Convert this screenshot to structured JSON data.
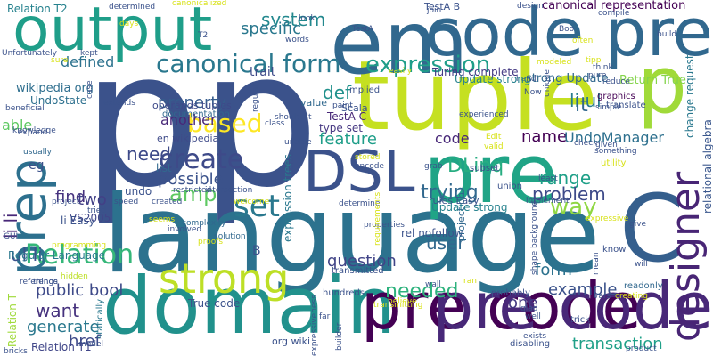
{
  "words": [
    {
      "text": "p",
      "color": "#3b528b"
    },
    {
      "text": "p",
      "color": "#3b528b"
    },
    {
      "text": "language",
      "color": "#2c728e"
    },
    {
      "text": "tuple",
      "color": "#c5e021"
    },
    {
      "text": "output",
      "color": "#1f9e89"
    },
    {
      "text": "em",
      "color": "#31688e"
    },
    {
      "text": "code pre",
      "color": "#31688e"
    },
    {
      "text": "domain",
      "color": "#21918c"
    },
    {
      "text": "pre code",
      "color": "#440154"
    },
    {
      "text": "pre code",
      "color": "#482878"
    },
    {
      "text": "DSL",
      "color": "#3b528b"
    },
    {
      "text": "pre",
      "color": "#20a486"
    },
    {
      "text": "p",
      "color": "#a0da39"
    },
    {
      "text": "C",
      "color": "#355f8d"
    },
    {
      "text": "prep",
      "color": "#2d708e"
    },
    {
      "text": "strong",
      "color": "#bddf26"
    },
    {
      "text": "canonical form",
      "color": "#2a788e"
    },
    {
      "text": "designer",
      "color": "#482575"
    },
    {
      "text": "expression",
      "color": "#1f9e89"
    },
    {
      "text": "Relation",
      "color": "#35b779"
    },
    {
      "text": "create",
      "color": "#3e4a89"
    },
    {
      "text": "based",
      "color": "#fde725"
    },
    {
      "text": "set",
      "color": "#2a788e"
    },
    {
      "text": "feature",
      "color": "#1f9e89"
    },
    {
      "text": "code",
      "color": "#482878"
    },
    {
      "text": "def",
      "color": "#21918c"
    },
    {
      "text": "property",
      "color": "#365c8d"
    },
    {
      "text": "another",
      "color": "#482878"
    },
    {
      "text": "need",
      "color": "#3e4a89"
    },
    {
      "text": "possible",
      "color": "#3b528b"
    },
    {
      "text": "li li",
      "color": "#482878"
    },
    {
      "text": "li ul",
      "color": "#287c8e"
    },
    {
      "text": "lt",
      "color": "#31688e"
    },
    {
      "text": "name",
      "color": "#440154"
    },
    {
      "text": "UndoManager",
      "color": "#2d708e"
    },
    {
      "text": "way",
      "color": "#90d743"
    },
    {
      "text": "DLinq",
      "color": "#27ad81"
    },
    {
      "text": "range",
      "color": "#1fa088"
    },
    {
      "text": "trying",
      "color": "#31688e"
    },
    {
      "text": "problem",
      "color": "#3e4a89"
    },
    {
      "text": "question",
      "color": "#414487"
    },
    {
      "text": "user",
      "color": "#31688e"
    },
    {
      "text": "needed",
      "color": "#2db27d"
    },
    {
      "text": "example",
      "color": "#3b528b"
    },
    {
      "text": "form",
      "color": "#2c728e"
    },
    {
      "text": "one",
      "color": "#443a83"
    },
    {
      "text": "transaction",
      "color": "#1fa088"
    },
    {
      "text": "generate",
      "color": "#2a788e"
    },
    {
      "text": "public bool",
      "color": "#3e4a89"
    },
    {
      "text": "want",
      "color": "#46327e"
    },
    {
      "text": "href",
      "color": "#3e4a89"
    },
    {
      "text": "find",
      "color": "#46327e"
    },
    {
      "text": "two",
      "color": "#424086"
    },
    {
      "text": "ul li",
      "color": "#3b528b"
    },
    {
      "text": "amp",
      "color": "#5ec962"
    },
    {
      "text": "system",
      "color": "#23888e"
    },
    {
      "text": "specific",
      "color": "#2a788e"
    },
    {
      "text": "trait",
      "color": "#3e4a89"
    },
    {
      "text": "defined",
      "color": "#2c728e"
    },
    {
      "text": "able",
      "color": "#5ec962"
    },
    {
      "text": "canonical representation",
      "color": "#440154"
    },
    {
      "text": "strong Update",
      "color": "#31688e"
    },
    {
      "text": "Return True",
      "color": "#84d44b"
    },
    {
      "text": "Turing complete",
      "color": "#443983"
    },
    {
      "text": "change request",
      "color": "#2a788e"
    },
    {
      "text": "relational algebra",
      "color": "#39568c"
    },
    {
      "text": "Relation T2",
      "color": "#26828e"
    },
    {
      "text": "Relation T1",
      "color": "#404688"
    },
    {
      "text": "Relation T",
      "color": "#9fda3a"
    },
    {
      "text": "wikipedia org",
      "color": "#2e6e8e"
    },
    {
      "text": "UndoState",
      "color": "#2d708e"
    },
    {
      "text": "Regular Language",
      "color": "#2a788e"
    },
    {
      "text": "VS2005",
      "color": "#404688"
    },
    {
      "text": "li Easy",
      "color": "#3b528b"
    },
    {
      "text": "eg",
      "color": "#3b528b"
    },
    {
      "text": "en wikipedia",
      "color": "#3e4a89"
    },
    {
      "text": "TestA C",
      "color": "#482878"
    },
    {
      "text": "type set",
      "color": "#453781"
    },
    {
      "text": "operands tuples",
      "color": "#3e4a89"
    },
    {
      "text": "documentation",
      "color": "#31688e"
    },
    {
      "text": "expression trees",
      "color": "#2a788e"
    },
    {
      "text": "Update strong",
      "color": "#26828e"
    },
    {
      "text": "rel nofollow",
      "color": "#3b528b"
    },
    {
      "text": "True code",
      "color": "#3b528b"
    },
    {
      "text": "org wiki",
      "color": "#3b528b"
    },
    {
      "text": "B",
      "color": "#3b528b"
    },
    {
      "text": "list",
      "color": "#31688e"
    },
    {
      "text": "undo",
      "color": "#3b528b"
    },
    {
      "text": "Scala",
      "color": "#3b528b"
    },
    {
      "text": "value",
      "color": "#31688e"
    },
    {
      "text": "Implied",
      "color": "#3b528b"
    },
    {
      "text": "TestA B",
      "color": "#3b528b"
    },
    {
      "text": "rules Easy",
      "color": "#3b528b"
    },
    {
      "text": "projection",
      "color": "#31688e"
    },
    {
      "text": "subset",
      "color": "#3b528b"
    },
    {
      "text": "union",
      "color": "#3b528b"
    },
    {
      "text": "graphics",
      "color": "#440154"
    },
    {
      "text": "translate",
      "color": "#3b528b"
    },
    {
      "text": "utility",
      "color": "#d8e219"
    },
    {
      "text": "know",
      "color": "#3b528b"
    },
    {
      "text": "readonly",
      "color": "#31688e"
    },
    {
      "text": "statically",
      "color": "#2a788e"
    },
    {
      "text": "hundreds",
      "color": "#3b528b"
    },
    {
      "text": "transmitted",
      "color": "#3b528b"
    },
    {
      "text": "disabling",
      "color": "#3b528b"
    },
    {
      "text": "trick",
      "color": "#3b528b"
    },
    {
      "text": "probably",
      "color": "#3b528b"
    },
    {
      "text": "model",
      "color": "#3b528b"
    },
    {
      "text": "bricks",
      "color": "#3b528b"
    },
    {
      "text": "things",
      "color": "#3b528b"
    },
    {
      "text": "hidden",
      "color": "#bddf26"
    },
    {
      "text": "programming",
      "color": "#d8e219"
    },
    {
      "text": "reference",
      "color": "#3b528b"
    },
    {
      "text": "proofs",
      "color": "#d8e219"
    },
    {
      "text": "involved",
      "color": "#3b528b"
    },
    {
      "text": "seems",
      "color": "#d8e219"
    },
    {
      "text": "solution",
      "color": "#31688e"
    },
    {
      "text": "complexity",
      "color": "#31688e"
    },
    {
      "text": "restricted",
      "color": "#3b528b"
    },
    {
      "text": "intersection",
      "color": "#3b528b"
    },
    {
      "text": "welcome",
      "color": "#d8e219"
    },
    {
      "text": "speed",
      "color": "#3b528b"
    },
    {
      "text": "created",
      "color": "#3b528b"
    },
    {
      "text": "tried",
      "color": "#3b528b"
    },
    {
      "text": "project",
      "color": "#3b528b"
    },
    {
      "text": "GUI",
      "color": "#3b528b"
    },
    {
      "text": "expand",
      "color": "#3b528b"
    },
    {
      "text": "usually",
      "color": "#31688e"
    },
    {
      "text": "beneficial",
      "color": "#3b528b"
    },
    {
      "text": "knowledge",
      "color": "#3b528b"
    },
    {
      "text": "Unfortunately",
      "color": "#3b528b"
    },
    {
      "text": "sure",
      "color": "#d8e219"
    },
    {
      "text": "kept",
      "color": "#3b528b"
    },
    {
      "text": "determined",
      "color": "#3b528b"
    },
    {
      "text": "canonicalized",
      "color": "#d8e219"
    },
    {
      "text": "days",
      "color": "#d8e219"
    },
    {
      "text": "T2",
      "color": "#3b528b"
    },
    {
      "text": "words",
      "color": "#3b528b"
    },
    {
      "text": "look",
      "color": "#3b528b"
    },
    {
      "text": "TestA",
      "color": "#3b528b"
    },
    {
      "text": "join",
      "color": "#3b528b"
    },
    {
      "text": "design",
      "color": "#3b528b"
    },
    {
      "text": "compile",
      "color": "#3b528b"
    },
    {
      "text": "tipp",
      "color": "#d8e219"
    },
    {
      "text": "modeled",
      "color": "#d8e219"
    },
    {
      "text": "Boo",
      "color": "#3b528b"
    },
    {
      "text": "often",
      "color": "#d8e219"
    },
    {
      "text": "build",
      "color": "#3b528b"
    },
    {
      "text": "pure",
      "color": "#3b528b"
    },
    {
      "text": "think",
      "color": "#3b528b"
    },
    {
      "text": "reduce",
      "color": "#3b528b"
    },
    {
      "text": "hand",
      "color": "#3b528b"
    },
    {
      "text": "easily",
      "color": "#d8e219"
    },
    {
      "text": "Now",
      "color": "#3b528b"
    },
    {
      "text": "unique",
      "color": "#3b528b"
    },
    {
      "text": "simple",
      "color": "#3b528b"
    },
    {
      "text": "case",
      "color": "#3b528b"
    },
    {
      "text": "extends",
      "color": "#3b528b"
    },
    {
      "text": "regular",
      "color": "#3b528b"
    },
    {
      "text": "paint",
      "color": "#3b528b"
    },
    {
      "text": "class",
      "color": "#3b528b"
    },
    {
      "text": "shouldn't",
      "color": "#3b528b"
    },
    {
      "text": "unable",
      "color": "#3b528b"
    },
    {
      "text": "stored",
      "color": "#d8e219"
    },
    {
      "text": "parse",
      "color": "#3b528b"
    },
    {
      "text": "encode",
      "color": "#3b528b"
    },
    {
      "text": "experienced",
      "color": "#3b528b"
    },
    {
      "text": "valid",
      "color": "#d8e219"
    },
    {
      "text": "Edit",
      "color": "#d8e219"
    },
    {
      "text": "check",
      "color": "#3b528b"
    },
    {
      "text": "given",
      "color": "#3b528b"
    },
    {
      "text": "something",
      "color": "#3b528b"
    },
    {
      "text": "least",
      "color": "#3b528b"
    },
    {
      "text": "implement",
      "color": "#3b528b"
    },
    {
      "text": "grab",
      "color": "#3b528b"
    },
    {
      "text": "determine",
      "color": "#3b528b"
    },
    {
      "text": "properties",
      "color": "#3b528b"
    },
    {
      "text": "requirements",
      "color": "#d8e219"
    },
    {
      "text": "expressive",
      "color": "#d8e219"
    },
    {
      "text": "give",
      "color": "#3b528b"
    },
    {
      "text": "will",
      "color": "#3b528b"
    },
    {
      "text": "mean",
      "color": "#3b528b"
    },
    {
      "text": "shape background",
      "color": "#3b528b"
    },
    {
      "text": "ran",
      "color": "#d8e219"
    },
    {
      "text": "wall",
      "color": "#3b528b"
    },
    {
      "text": "transmitting",
      "color": "#d8e219"
    },
    {
      "text": "believe",
      "color": "#d8e219"
    },
    {
      "text": "glad",
      "color": "#3b528b"
    },
    {
      "text": "well",
      "color": "#3b528b"
    },
    {
      "text": "exists",
      "color": "#3b528b"
    },
    {
      "text": "product",
      "color": "#3b528b"
    },
    {
      "text": "vars",
      "color": "#3b528b"
    },
    {
      "text": "creating",
      "color": "#d8e219"
    },
    {
      "text": "far",
      "color": "#3b528b"
    },
    {
      "text": "builder",
      "color": "#3b528b"
    },
    {
      "text": "expressiveness",
      "color": "#3b528b"
    },
    {
      "text": "Update strong",
      "color": "#26828e"
    }
  ]
}
